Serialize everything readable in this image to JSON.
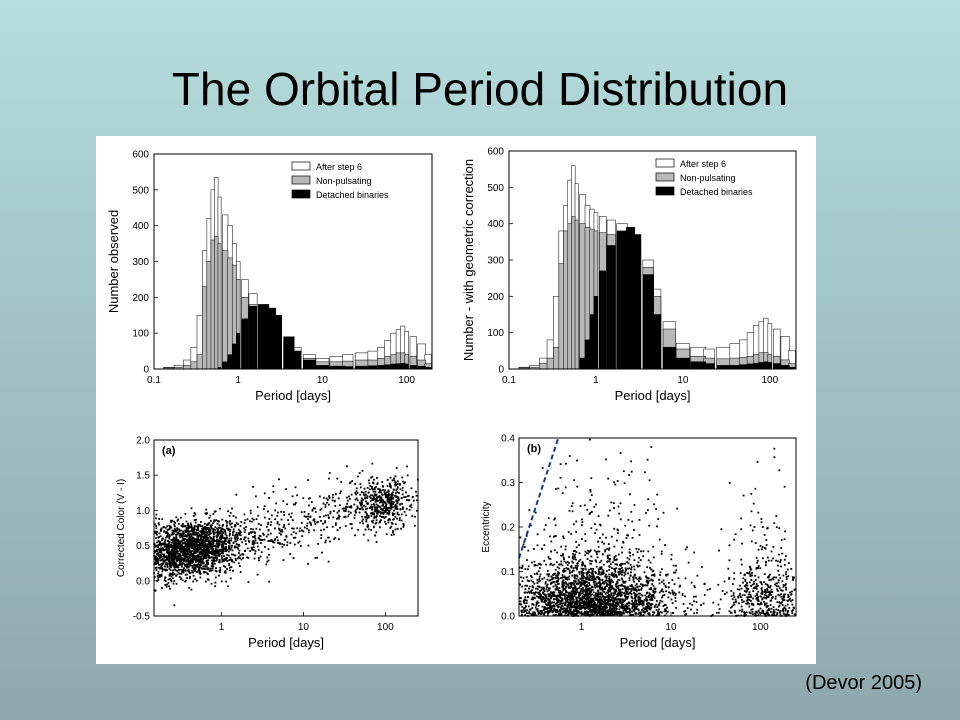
{
  "slide": {
    "title": "The Orbital Period Distribution",
    "citation": "(Devor 2005)"
  },
  "colors": {
    "background_top": "#b6dede",
    "background_bottom": "#8fa9ae",
    "after_step6": "#ffffff",
    "non_pulsating": "#b8b8b8",
    "detached": "#000000",
    "dashed_line": "#1a3a8c"
  },
  "chart_data": [
    {
      "type": "bar",
      "id": "hist_observed",
      "xscale": "log",
      "xlim": [
        0.1,
        200
      ],
      "ylim": [
        0,
        600
      ],
      "xticks": [
        "0.1",
        "1",
        "10",
        "100"
      ],
      "yticks": [
        "0",
        "100",
        "200",
        "300",
        "400",
        "500",
        "600"
      ],
      "xlabel": "Period  [days]",
      "ylabel": "Number observed",
      "legend": [
        "After step 6",
        "Non-pulsating",
        "Detached binaries"
      ],
      "legend_position": "top-right",
      "series": [
        {
          "name": "After step 6",
          "x": [
            0.15,
            0.2,
            0.25,
            0.3,
            0.35,
            0.4,
            0.45,
            0.5,
            0.55,
            0.6,
            0.7,
            0.8,
            0.9,
            1,
            1.2,
            1.5,
            2,
            2.5,
            3,
            4,
            5,
            7,
            10,
            15,
            20,
            30,
            40,
            50,
            60,
            70,
            80,
            90,
            100,
            120,
            150,
            180
          ],
          "values": [
            5,
            10,
            25,
            60,
            150,
            330,
            420,
            500,
            535,
            480,
            430,
            400,
            350,
            300,
            250,
            210,
            180,
            160,
            140,
            90,
            60,
            40,
            30,
            35,
            40,
            45,
            50,
            60,
            80,
            100,
            110,
            120,
            105,
            90,
            70,
            40
          ]
        },
        {
          "name": "Non-pulsating",
          "x": [
            0.15,
            0.2,
            0.25,
            0.3,
            0.35,
            0.4,
            0.45,
            0.5,
            0.55,
            0.6,
            0.7,
            0.8,
            0.9,
            1,
            1.2,
            1.5,
            2,
            2.5,
            3,
            4,
            5,
            7,
            10,
            15,
            20,
            30,
            40,
            50,
            60,
            70,
            80,
            90,
            100,
            120,
            150,
            180
          ],
          "values": [
            3,
            5,
            10,
            20,
            40,
            230,
            300,
            360,
            370,
            350,
            330,
            310,
            290,
            250,
            200,
            180,
            170,
            150,
            130,
            80,
            50,
            30,
            20,
            20,
            22,
            25,
            25,
            30,
            35,
            40,
            45,
            45,
            40,
            35,
            25,
            15
          ]
        },
        {
          "name": "Detached binaries",
          "x": [
            0.15,
            0.2,
            0.25,
            0.3,
            0.35,
            0.4,
            0.45,
            0.5,
            0.55,
            0.6,
            0.7,
            0.8,
            0.9,
            1,
            1.2,
            1.5,
            2,
            2.5,
            3,
            4,
            5,
            7,
            10,
            15,
            20,
            30,
            40,
            50,
            60,
            70,
            80,
            90,
            100,
            120,
            150,
            180
          ],
          "values": [
            0,
            0,
            0,
            0,
            0,
            0,
            0,
            0,
            0,
            5,
            20,
            40,
            70,
            100,
            140,
            175,
            180,
            170,
            150,
            90,
            50,
            25,
            10,
            8,
            7,
            8,
            9,
            10,
            12,
            14,
            15,
            16,
            14,
            10,
            8,
            5
          ]
        }
      ]
    },
    {
      "type": "bar",
      "id": "hist_corrected",
      "xscale": "log",
      "xlim": [
        0.1,
        200
      ],
      "ylim": [
        0,
        600
      ],
      "xticks": [
        "0.1",
        "1",
        "10",
        "100"
      ],
      "yticks": [
        "0",
        "100",
        "200",
        "300",
        "400",
        "500",
        "600"
      ],
      "xlabel": "Period  [days]",
      "ylabel": "Number - with geometric correction",
      "legend": [
        "After step 6",
        "Non-pulsating",
        "Detached binaries"
      ],
      "legend_position": "top-right",
      "series": [
        {
          "name": "After step 6",
          "x": [
            0.15,
            0.2,
            0.25,
            0.3,
            0.35,
            0.4,
            0.45,
            0.5,
            0.55,
            0.6,
            0.7,
            0.8,
            0.9,
            1,
            1.2,
            1.5,
            2,
            2.5,
            3,
            4,
            5,
            7,
            10,
            15,
            20,
            30,
            40,
            50,
            60,
            70,
            80,
            90,
            100,
            120,
            150,
            180
          ],
          "values": [
            5,
            10,
            30,
            80,
            200,
            380,
            450,
            520,
            560,
            510,
            480,
            450,
            440,
            430,
            420,
            410,
            400,
            390,
            370,
            300,
            220,
            130,
            70,
            60,
            55,
            60,
            70,
            80,
            100,
            120,
            130,
            140,
            125,
            110,
            90,
            50
          ]
        },
        {
          "name": "Non-pulsating",
          "x": [
            0.15,
            0.2,
            0.25,
            0.3,
            0.35,
            0.4,
            0.45,
            0.5,
            0.55,
            0.6,
            0.7,
            0.8,
            0.9,
            1,
            1.2,
            1.5,
            2,
            2.5,
            3,
            4,
            5,
            7,
            10,
            15,
            20,
            30,
            40,
            50,
            60,
            70,
            80,
            90,
            100,
            120,
            150,
            180
          ],
          "values": [
            3,
            5,
            15,
            30,
            60,
            290,
            380,
            400,
            420,
            410,
            400,
            390,
            385,
            380,
            375,
            370,
            365,
            360,
            350,
            280,
            200,
            110,
            55,
            35,
            30,
            28,
            30,
            32,
            35,
            40,
            45,
            45,
            40,
            35,
            25,
            15
          ]
        },
        {
          "name": "Detached binaries",
          "x": [
            0.15,
            0.2,
            0.25,
            0.3,
            0.35,
            0.4,
            0.45,
            0.5,
            0.55,
            0.6,
            0.7,
            0.8,
            0.9,
            1,
            1.2,
            1.5,
            2,
            2.5,
            3,
            4,
            5,
            7,
            10,
            15,
            20,
            30,
            40,
            50,
            60,
            70,
            80,
            90,
            100,
            120,
            150,
            180
          ],
          "values": [
            0,
            0,
            0,
            0,
            0,
            0,
            0,
            0,
            0,
            0,
            30,
            80,
            150,
            200,
            270,
            340,
            380,
            390,
            370,
            260,
            150,
            60,
            30,
            20,
            15,
            10,
            10,
            12,
            14,
            16,
            18,
            20,
            18,
            15,
            10,
            5
          ]
        }
      ]
    },
    {
      "type": "scatter",
      "id": "color_vs_period",
      "panel_label": "(a)",
      "xscale": "log",
      "xlim": [
        0.15,
        250
      ],
      "ylim": [
        -0.5,
        2.0
      ],
      "xticks": [
        "1",
        "10",
        "100"
      ],
      "yticks": [
        "-0.5",
        "0.0",
        "0.5",
        "1.0",
        "1.5",
        "2.0"
      ],
      "xlabel": "Period [days]",
      "ylabel": "Corrected Color (V - I)",
      "description_clusters": [
        {
          "period_center": 0.4,
          "color_center": 0.45,
          "spread_color": 0.2,
          "n": 2200
        },
        {
          "period_center": 100,
          "color_center": 1.1,
          "spread_color": 0.18,
          "n": 450
        }
      ]
    },
    {
      "type": "scatter",
      "id": "ecc_vs_period",
      "panel_label": "(b)",
      "xscale": "log",
      "xlim": [
        0.2,
        250
      ],
      "ylim": [
        0.0,
        0.4
      ],
      "xticks": [
        "1",
        "10",
        "100"
      ],
      "yticks": [
        "0.0",
        "0.1",
        "0.2",
        "0.3",
        "0.4"
      ],
      "xlabel": "Period [days]",
      "ylabel": "Eccentricity",
      "dashed_line": {
        "from": [
          0.2,
          0.13
        ],
        "to": [
          0.55,
          0.4
        ]
      }
    }
  ]
}
